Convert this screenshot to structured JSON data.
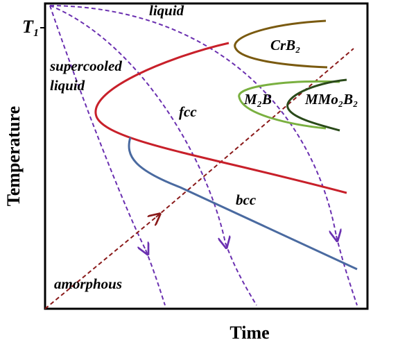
{
  "axes": {
    "y_label": "Temperature",
    "x_label": "Time",
    "t1": "T₁"
  },
  "regions": {
    "liquid": "liquid",
    "supercooled_1": "supercooled",
    "supercooled_2": "liquid",
    "fcc": "fcc",
    "bcc": "bcc",
    "amorphous": "amorphous"
  },
  "phases": {
    "crb2": "CrB₂",
    "m2b": "M₂B",
    "mmo2b2": "MMo₂B₂"
  }
}
